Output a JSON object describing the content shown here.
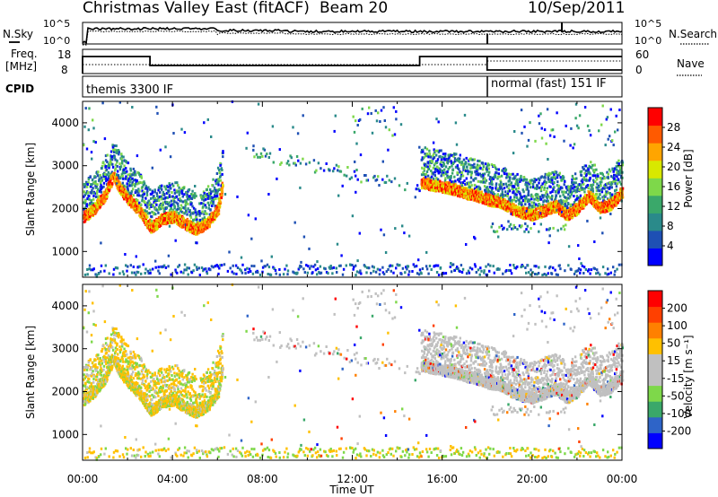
{
  "header": {
    "title": "Christmas Valley East (fitACF)",
    "beam": "Beam 20",
    "date": "10/Sep/2011"
  },
  "top_panels": {
    "nsky_label": "N.Sky",
    "nsearch_label": "N.Search",
    "noise_ticks": [
      "10^5",
      "10^0"
    ],
    "freq_label": "Freq.",
    "freq_unit": "[MHz]",
    "freq_ticks": [
      "18",
      "8"
    ],
    "nave_label": "Nave",
    "nave_ticks": [
      "60",
      "0"
    ],
    "cpid_label": "CPID",
    "modes": [
      {
        "label": "themis 3300 IF",
        "start_hour": 0.0,
        "end_hour": 18.0
      },
      {
        "label": "normal (fast) 151 IF",
        "start_hour": 18.0,
        "end_hour": 24.0
      }
    ]
  },
  "colors": {
    "power_scale": [
      "#0000ff",
      "#1e50b4",
      "#2a8a8a",
      "#3aa86a",
      "#7ed84a",
      "#d8e800",
      "#ffa500",
      "#ff5a00",
      "#ff0000"
    ],
    "velocity_scale": [
      "#0000ff",
      "#2e64c8",
      "#3aa86a",
      "#7ed84a",
      "#c0c0c0",
      "#c0c0c0",
      "#ffc000",
      "#ff8000",
      "#ff4000",
      "#ff0000"
    ]
  },
  "chart_data": [
    {
      "type": "heatmap",
      "name": "power",
      "ylabel": "Slant Range [km]",
      "colorbar_label": "Power [dB]",
      "colorbar_ticks": [
        "4",
        "8",
        "12",
        "16",
        "20",
        "24",
        "28"
      ],
      "xlim": [
        0,
        24
      ],
      "ylim": [
        400,
        4500
      ],
      "yticks": [
        "1000",
        "2000",
        "3000",
        "4000"
      ],
      "main_echo_ridge": {
        "hours": [
          0.0,
          0.5,
          1.0,
          1.3,
          1.6,
          2.0,
          2.5,
          3.0,
          3.5,
          4.0,
          4.5,
          5.0,
          5.5,
          6.0,
          6.2,
          15.0,
          15.5,
          16.0,
          16.5,
          17.0,
          17.5,
          18.0,
          18.5,
          19.0,
          19.5,
          20.0,
          20.5,
          21.0,
          21.5,
          22.0,
          22.5,
          23.0,
          23.5,
          24.0
        ],
        "range_km": [
          1800,
          2000,
          2350,
          2750,
          2500,
          2200,
          1950,
          1550,
          1750,
          1800,
          1650,
          1500,
          1650,
          2000,
          2600,
          2600,
          2550,
          2500,
          2450,
          2350,
          2300,
          2200,
          2150,
          2000,
          1900,
          1850,
          1950,
          2050,
          1850,
          2000,
          2300,
          2000,
          2100,
          2400
        ]
      }
    },
    {
      "type": "heatmap",
      "name": "velocity",
      "xlabel": "Time UT",
      "ylabel": "Slant Range [km]",
      "colorbar_label": "Velocity [m s⁻¹]",
      "colorbar_ticks": [
        "-200",
        "-100",
        "-50",
        "-15",
        "15",
        "50",
        "100",
        "200"
      ],
      "xlim": [
        0,
        24
      ],
      "ylim": [
        400,
        4500
      ],
      "yticks": [
        "1000",
        "2000",
        "3000",
        "4000"
      ],
      "xticks": [
        "00:00",
        "04:00",
        "08:00",
        "12:00",
        "16:00",
        "20:00",
        "00:00"
      ]
    }
  ]
}
